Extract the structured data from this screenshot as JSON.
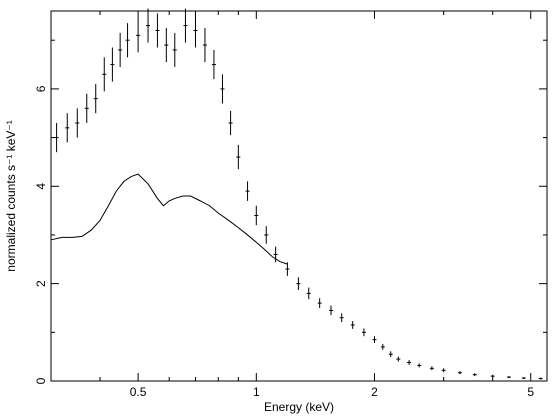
{
  "chart_data": {
    "type": "scatter",
    "title": "",
    "xlabel": "Energy (keV)",
    "ylabel": "normalized counts s⁻¹ keV⁻¹",
    "x_scale": "log",
    "xlim": [
      0.3,
      5.5
    ],
    "ylim": [
      0,
      7.6
    ],
    "grid": false,
    "x_ticks": [
      {
        "value": 0.5,
        "label": "0.5"
      },
      {
        "value": 1,
        "label": "1"
      },
      {
        "value": 2,
        "label": "2"
      },
      {
        "value": 5,
        "label": "5"
      }
    ],
    "y_ticks": [
      {
        "value": 0,
        "label": "0"
      },
      {
        "value": 2,
        "label": "2"
      },
      {
        "value": 4,
        "label": "4"
      },
      {
        "value": 6,
        "label": "6"
      }
    ],
    "series": [
      {
        "style": "points-with-error-bars",
        "color": "#000000",
        "x": [
          0.31,
          0.33,
          0.35,
          0.37,
          0.39,
          0.41,
          0.43,
          0.45,
          0.47,
          0.5,
          0.53,
          0.56,
          0.59,
          0.62,
          0.66,
          0.7,
          0.74,
          0.78,
          0.82,
          0.86,
          0.9,
          0.95,
          1.0,
          1.06,
          1.12,
          1.2,
          1.28,
          1.36,
          1.45,
          1.55,
          1.65,
          1.76,
          1.88,
          2.0,
          2.1,
          2.2,
          2.3,
          2.45,
          2.6,
          2.8,
          3.0,
          3.3,
          3.6,
          4.0,
          4.4,
          4.8,
          5.3
        ],
        "y": [
          5.0,
          5.2,
          5.3,
          5.6,
          5.8,
          6.3,
          6.5,
          6.8,
          7.0,
          7.1,
          7.3,
          7.2,
          6.9,
          6.8,
          7.3,
          7.2,
          6.9,
          6.5,
          6.0,
          5.3,
          4.6,
          3.9,
          3.4,
          3.0,
          2.6,
          2.3,
          2.0,
          1.8,
          1.6,
          1.45,
          1.3,
          1.15,
          1.0,
          0.85,
          0.7,
          0.55,
          0.45,
          0.38,
          0.32,
          0.26,
          0.22,
          0.17,
          0.13,
          0.1,
          0.08,
          0.06,
          0.05
        ],
        "yerr": [
          0.3,
          0.3,
          0.3,
          0.3,
          0.3,
          0.35,
          0.35,
          0.35,
          0.35,
          0.35,
          0.35,
          0.35,
          0.35,
          0.35,
          0.35,
          0.35,
          0.35,
          0.3,
          0.3,
          0.25,
          0.25,
          0.2,
          0.2,
          0.18,
          0.16,
          0.14,
          0.13,
          0.12,
          0.1,
          0.1,
          0.09,
          0.08,
          0.08,
          0.07,
          0.06,
          0.06,
          0.05,
          0.05,
          0.04,
          0.04,
          0.04,
          0.03,
          0.03,
          0.03,
          0.02,
          0.02,
          0.02
        ]
      },
      {
        "style": "line",
        "color": "#000000",
        "x": [
          0.3,
          0.32,
          0.34,
          0.36,
          0.38,
          0.4,
          0.42,
          0.44,
          0.46,
          0.48,
          0.5,
          0.53,
          0.56,
          0.58,
          0.6,
          0.62,
          0.65,
          0.68,
          0.72,
          0.76,
          0.8,
          0.85,
          0.9,
          0.95,
          1.0,
          1.05,
          1.1,
          1.15,
          1.2
        ],
        "y": [
          2.9,
          2.95,
          2.95,
          2.97,
          3.1,
          3.3,
          3.6,
          3.9,
          4.1,
          4.2,
          4.25,
          4.05,
          3.75,
          3.6,
          3.7,
          3.75,
          3.8,
          3.8,
          3.7,
          3.6,
          3.45,
          3.3,
          3.15,
          3.0,
          2.85,
          2.7,
          2.55,
          2.45,
          2.4
        ]
      }
    ]
  }
}
